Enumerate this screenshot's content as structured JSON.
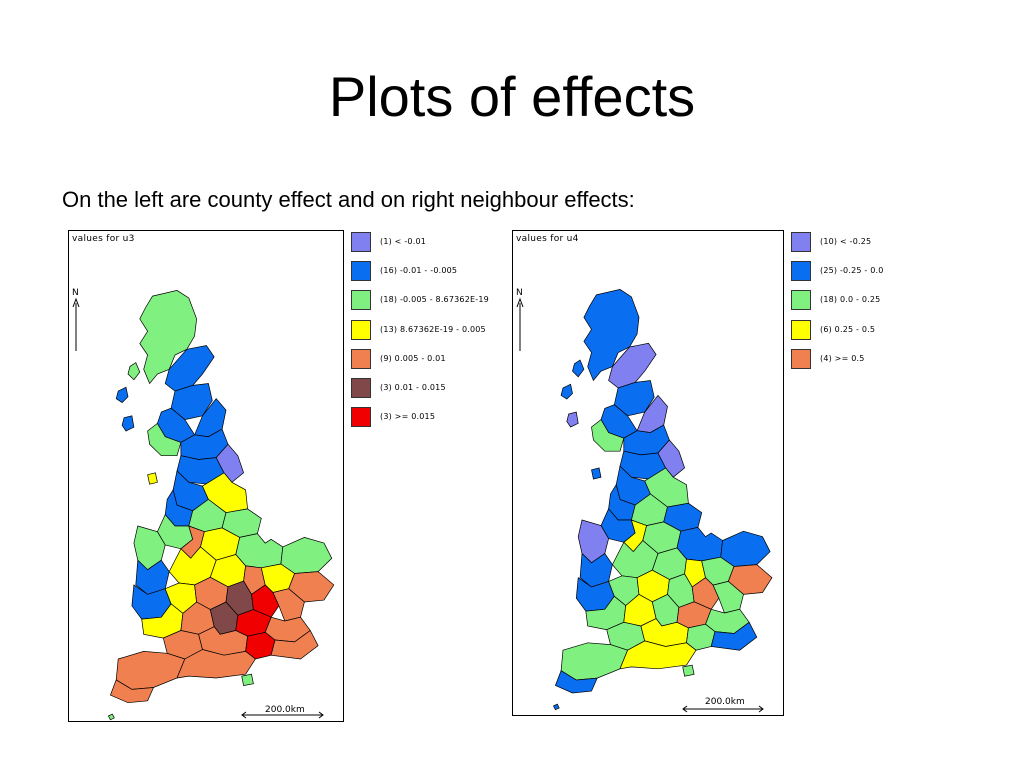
{
  "slide": {
    "title": "Plots of effects",
    "subtitle": "On the left are county effect and on right neighbour effects:"
  },
  "maps": [
    {
      "caption": "values for u3",
      "north_label": "N",
      "scale_label": "200.0km",
      "legend": [
        {
          "label": "(1) <  -0.01",
          "color": "#8080f0"
        },
        {
          "label": "(16)   -0.01  -  -0.005",
          "color": "#0a6ef0"
        },
        {
          "label": "(18)  -0.005 - 8.67362E-19",
          "color": "#80f080"
        },
        {
          "label": "(13) 8.67362E-19  -   0.005",
          "color": "#ffff00"
        },
        {
          "label": "(9)   0.005 -    0.01",
          "color": "#f08050"
        },
        {
          "label": "(3)    0.01 -   0.015",
          "color": "#804848"
        },
        {
          "label": "(3) >=  0.015",
          "color": "#f00000"
        }
      ]
    },
    {
      "caption": "values for u4",
      "north_label": "N",
      "scale_label": "200.0km",
      "legend": [
        {
          "label": "(10) <  -0.25",
          "color": "#8080f0"
        },
        {
          "label": "(25)   -0.25 -    0.0",
          "color": "#0a6ef0"
        },
        {
          "label": "(18)     0.0 -    0.25",
          "color": "#80f080"
        },
        {
          "label": "(6)    0.25 -     0.5",
          "color": "#ffff00"
        },
        {
          "label": "(4) >=    0.5",
          "color": "#f08050"
        }
      ]
    }
  ]
}
